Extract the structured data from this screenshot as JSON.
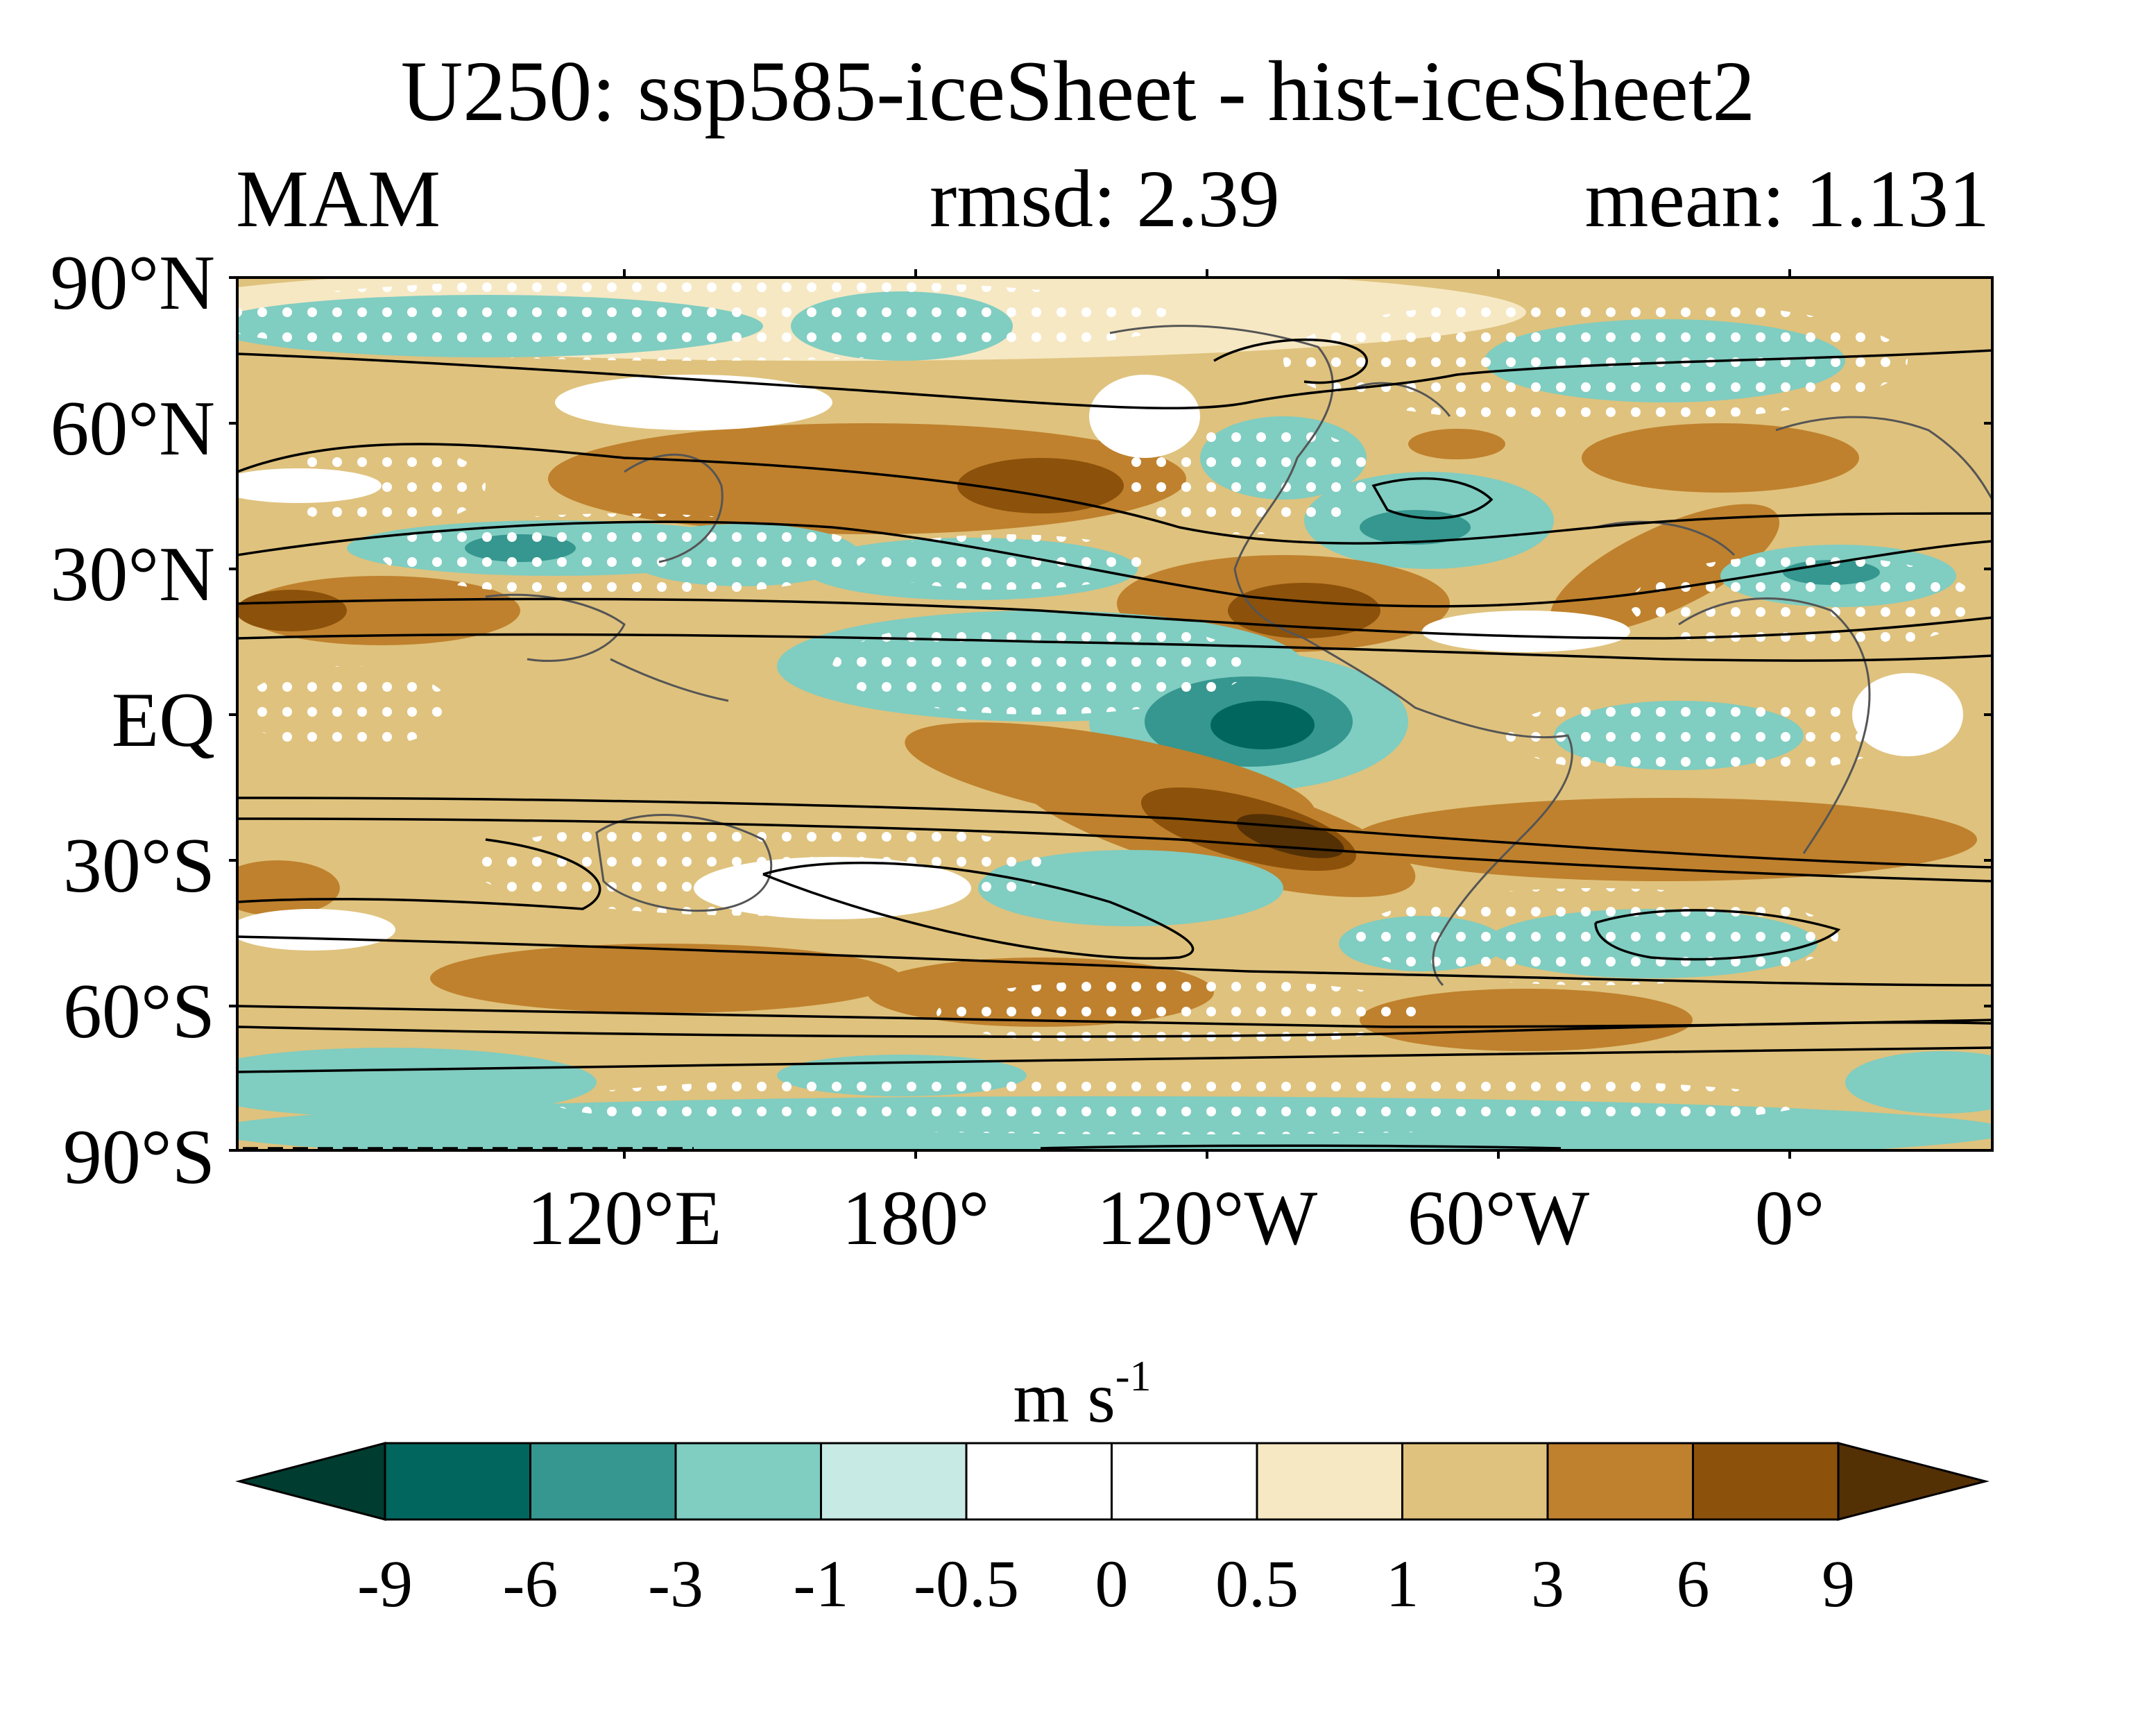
{
  "title": "U250: ssp585-iceSheet - hist-iceSheet2",
  "season": "MAM",
  "rmsd_text": "rmsd: 2.39",
  "mean_text": "mean: 1.131",
  "units": {
    "base": "m s",
    "exponent": "-1"
  },
  "lat_labels": [
    "90°N",
    "60°N",
    "30°N",
    "EQ",
    "30°S",
    "60°S",
    "90°S"
  ],
  "lon_labels": [
    "120°E",
    "180°",
    "120°W",
    "60°W",
    "0°"
  ],
  "colorbar": {
    "labels": [
      "-9",
      "-6",
      "-3",
      "-1",
      "-0.5",
      "0",
      "0.5",
      "1",
      "3",
      "6",
      "9"
    ],
    "colors": [
      "#003c30",
      "#01665e",
      "#35978f",
      "#80cdc1",
      "#c7eae5",
      "#ffffff",
      "#ffffff",
      "#f6e8c3",
      "#dfc27d",
      "#bf812d",
      "#8c510a",
      "#543005"
    ]
  },
  "colors": {
    "coastline": "#555555",
    "contour": "#000000",
    "stipple": "#ffffff",
    "neg_strong": "#01665e",
    "neg_mid": "#35978f",
    "neg_weak": "#80cdc1",
    "neg_faint": "#c7eae5",
    "pos_faint": "#f6e8c3",
    "pos_weak": "#dfc27d",
    "pos_mid": "#bf812d",
    "pos_strong": "#8c510a",
    "pos_extreme": "#543005"
  }
}
